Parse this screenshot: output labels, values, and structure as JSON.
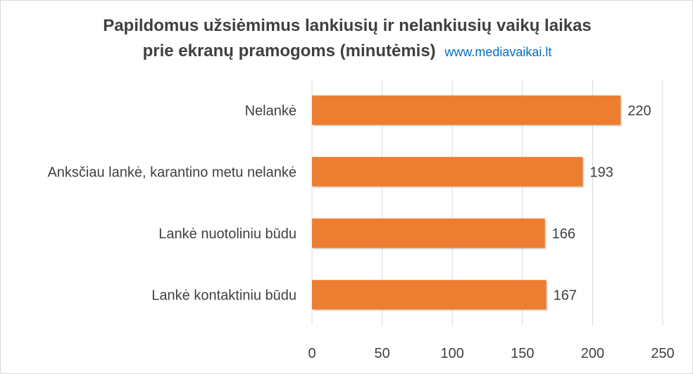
{
  "title": {
    "line1": "Papildomus užsiėmimus lankiusių ir nelankiusių vaikų laikas",
    "line2": "prie ekranų pramogoms (minutėmis)",
    "url": "www.mediavaikai.lt"
  },
  "colors": {
    "bar": "#ed7d31",
    "grid": "#d9d9d9",
    "text": "#404040",
    "url": "#0070c0"
  },
  "chart_data": {
    "type": "bar",
    "orientation": "horizontal",
    "title": "Papildomus užsiėmimus lankiusių ir nelankiusių vaikų laikas prie ekranų pramogoms (minutėmis)",
    "categories": [
      "Nelankė",
      "Anksčiau lankė, karantino metu nelankė",
      "Lankė nuotoliniu būdu",
      "Lankė kontaktiniu būdu"
    ],
    "values": [
      220,
      193,
      166,
      167
    ],
    "xlim": [
      0,
      250
    ],
    "xticks": [
      0,
      50,
      100,
      150,
      200,
      250
    ],
    "grid": true,
    "legend": "none",
    "data_labels": true
  }
}
